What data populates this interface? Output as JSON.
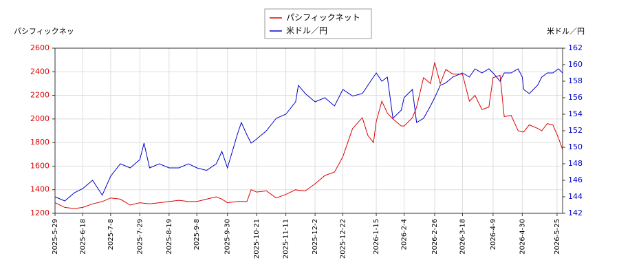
{
  "chart_data": {
    "type": "line",
    "y_label": "パシフィックネッ",
    "y2_label": "米ドル／円",
    "x": [
      "2025-5-29",
      "2025-6-5",
      "2025-6-12",
      "2025-6-18",
      "2025-6-25",
      "2025-7-2",
      "2025-7-8",
      "2025-7-15",
      "2025-7-22",
      "2025-7-29",
      "2025-8-1",
      "2025-8-5",
      "2025-8-12",
      "2025-8-19",
      "2025-8-26",
      "2025-9-2",
      "2025-9-8",
      "2025-9-15",
      "2025-9-22",
      "2025-9-26",
      "2025-9-30",
      "2025-10-7",
      "2025-10-10",
      "2025-10-14",
      "2025-10-17",
      "2025-10-21",
      "2025-10-28",
      "2025-11-4",
      "2025-11-11",
      "2025-11-18",
      "2025-11-20",
      "2025-11-25",
      "2025-12-2",
      "2025-12-9",
      "2025-12-16",
      "2025-12-22",
      "2025-12-29",
      "2026-1-5",
      "2026-1-9",
      "2026-1-13",
      "2026-1-15",
      "2026-1-19",
      "2026-1-23",
      "2026-1-27",
      "2026-2-2",
      "2026-2-4",
      "2026-2-10",
      "2026-2-13",
      "2026-2-18",
      "2026-2-23",
      "2026-2-26",
      "2026-3-2",
      "2026-3-6",
      "2026-3-11",
      "2026-3-18",
      "2026-3-23",
      "2026-3-27",
      "2026-4-1",
      "2026-4-6",
      "2026-4-9",
      "2026-4-14",
      "2026-4-17",
      "2026-4-22",
      "2026-4-27",
      "2026-4-30",
      "2026-5-1",
      "2026-5-5",
      "2026-5-11",
      "2026-5-14",
      "2026-5-18",
      "2026-5-22",
      "2026-5-26",
      "2026-5-29"
    ],
    "series": [
      {
        "name": "パシフィックネット",
        "color": "#dd0000",
        "axis": "y",
        "values": [
          1290,
          1250,
          1240,
          1250,
          1280,
          1300,
          1330,
          1320,
          1270,
          1290,
          1285,
          1280,
          1290,
          1300,
          1310,
          1300,
          1300,
          1320,
          1340,
          1320,
          1290,
          1300,
          1300,
          1300,
          1400,
          1380,
          1390,
          1330,
          1360,
          1400,
          1395,
          1390,
          1450,
          1520,
          1550,
          1680,
          1920,
          2010,
          1860,
          1800,
          1980,
          2150,
          2050,
          2000,
          1940,
          1940,
          2010,
          2100,
          2350,
          2300,
          2480,
          2300,
          2420,
          2380,
          2380,
          2150,
          2200,
          2080,
          2100,
          2350,
          2370,
          2020,
          2030,
          1900,
          1890,
          1890,
          1950,
          1920,
          1900,
          1960,
          1950,
          1840,
          1740
        ]
      },
      {
        "name": "米ドル／円",
        "color": "#0000cc",
        "axis": "y2",
        "values": [
          144.0,
          143.5,
          144.5,
          145.0,
          146.0,
          144.2,
          146.5,
          148.0,
          147.5,
          148.5,
          150.5,
          147.5,
          148.0,
          147.5,
          147.5,
          148.0,
          147.5,
          147.2,
          148.0,
          149.5,
          147.5,
          151.5,
          153.0,
          151.5,
          150.5,
          151.0,
          152.0,
          153.5,
          154.0,
          155.5,
          157.5,
          156.5,
          155.5,
          156.0,
          155.0,
          157.0,
          156.2,
          156.5,
          157.5,
          158.5,
          159.0,
          158.0,
          158.5,
          153.5,
          154.5,
          156.0,
          157.0,
          153.0,
          153.5,
          155.0,
          156.0,
          157.5,
          157.8,
          158.5,
          159.0,
          158.5,
          159.5,
          159.0,
          159.5,
          159.0,
          158.0,
          159.0,
          159.0,
          159.5,
          158.5,
          157.0,
          156.5,
          157.5,
          158.5,
          159.0,
          159.0,
          159.5,
          159.0
        ]
      }
    ],
    "xlim": [
      "2025-5-29",
      "2026-5-29"
    ],
    "xticks": [
      "2025-5-29",
      "2025-6-18",
      "2025-7-8",
      "2025-7-29",
      "2025-8-19",
      "2025-9-8",
      "2025-9-30",
      "2025-10-21",
      "2025-11-11",
      "2025-12-2",
      "2025-12-22",
      "2026-1-15",
      "2026-2-4",
      "2026-2-26",
      "2026-3-18",
      "2026-4-9",
      "2026-4-30",
      "2026-5-25"
    ],
    "ylim": [
      1200,
      2600
    ],
    "yticks": [
      1200,
      1400,
      1600,
      1800,
      2000,
      2200,
      2400,
      2600
    ],
    "y2lim": [
      142,
      162
    ],
    "y2ticks": [
      142,
      144,
      146,
      148,
      150,
      152,
      154,
      156,
      158,
      160,
      162
    ],
    "grid": true,
    "legend": "top"
  }
}
